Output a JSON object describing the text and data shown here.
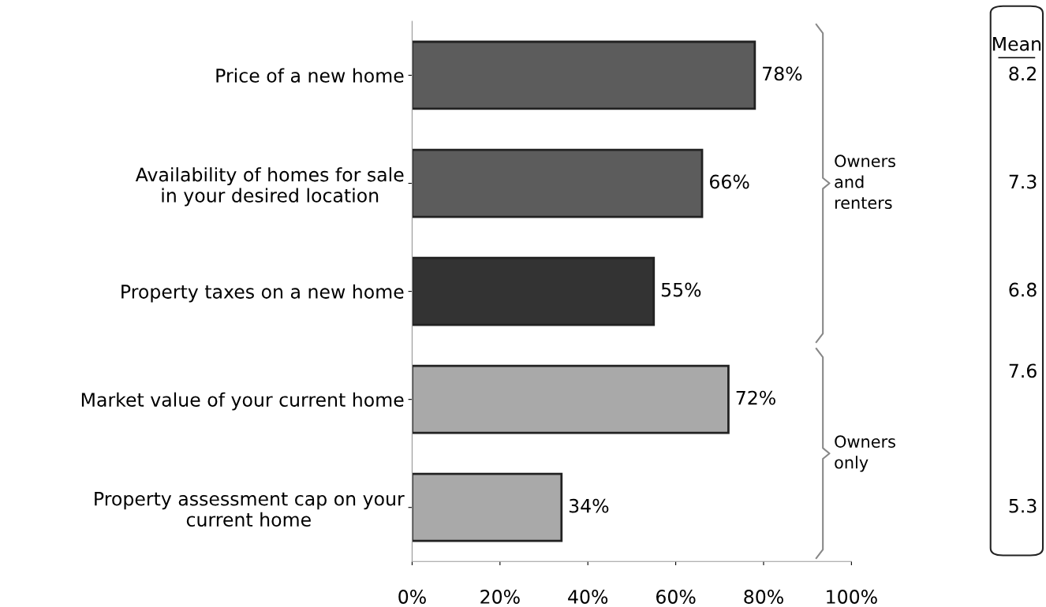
{
  "chart_data": {
    "type": "bar",
    "orientation": "horizontal",
    "categories": [
      "Price of a new home",
      "Availability of homes for sale\nin your desired location",
      "Property taxes on a new home",
      "Market value of your current home",
      "Property assessment cap on your\ncurrent home"
    ],
    "values": [
      78,
      66,
      55,
      72,
      34
    ],
    "colors": [
      "#5c5c5c",
      "#5c5c5c",
      "#333333",
      "#a9a9a9",
      "#a9a9a9"
    ],
    "value_labels": [
      "78%",
      "66%",
      "55%",
      "72%",
      "34%"
    ],
    "xlim": [
      0,
      100
    ],
    "xticks": [
      {
        "value": 0,
        "label": "0%"
      },
      {
        "value": 20,
        "label": "20%"
      },
      {
        "value": 40,
        "label": "40%"
      },
      {
        "value": 60,
        "label": "60%"
      },
      {
        "value": 80,
        "label": "80%"
      },
      {
        "value": 100,
        "label": "100%"
      }
    ],
    "grid": false,
    "legend": false,
    "annotations": [
      "Owners\nand\nrenters",
      "Owners\nonly",
      "Mean",
      "8.2",
      "7.3",
      "6.8",
      "7.6",
      "5.3"
    ]
  }
}
